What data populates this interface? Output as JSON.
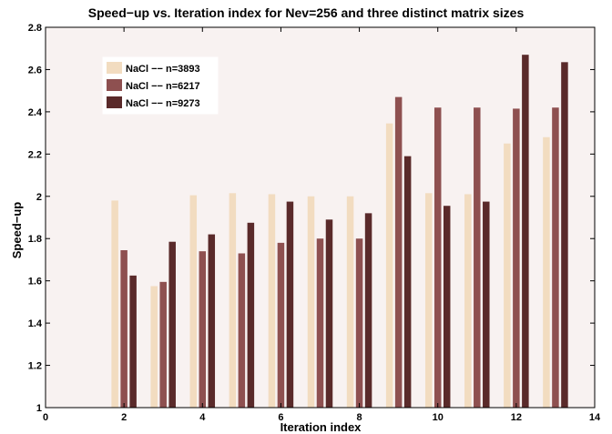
{
  "chart_data": {
    "type": "bar",
    "title": "Speed−up vs. Iteration index for Nev=256 and three distinct matrix sizes",
    "xlabel": "Iteration index",
    "ylabel": "Speed−up",
    "xlim": [
      0,
      14
    ],
    "ylim": [
      1,
      2.8
    ],
    "xticks": [
      0,
      2,
      4,
      6,
      8,
      10,
      12,
      14
    ],
    "yticks": [
      1,
      1.2,
      1.4,
      1.6,
      1.8,
      2,
      2.2,
      2.4,
      2.6,
      2.8
    ],
    "x": [
      2,
      3,
      4,
      5,
      6,
      7,
      8,
      9,
      10,
      11,
      12,
      13
    ],
    "legend_position": "top-left",
    "grid": false,
    "plot_background": "#f8f2f1",
    "series": [
      {
        "name": "NaCl −− n=3893",
        "color": "#f2dcc0",
        "values": [
          1.98,
          1.575,
          2.005,
          2.015,
          2.01,
          2.0,
          2.0,
          2.345,
          2.015,
          2.01,
          2.25,
          2.28
        ]
      },
      {
        "name": "NaCl −− n=6217",
        "color": "#8e5050",
        "values": [
          1.745,
          1.595,
          1.74,
          1.73,
          1.78,
          1.8,
          1.8,
          2.47,
          2.42,
          2.42,
          2.415,
          2.42
        ]
      },
      {
        "name": "NaCl −− n=9273",
        "color": "#5a2a2a",
        "values": [
          1.625,
          1.785,
          1.82,
          1.875,
          1.975,
          1.89,
          1.92,
          2.19,
          1.955,
          1.975,
          2.67,
          2.635
        ]
      }
    ]
  }
}
